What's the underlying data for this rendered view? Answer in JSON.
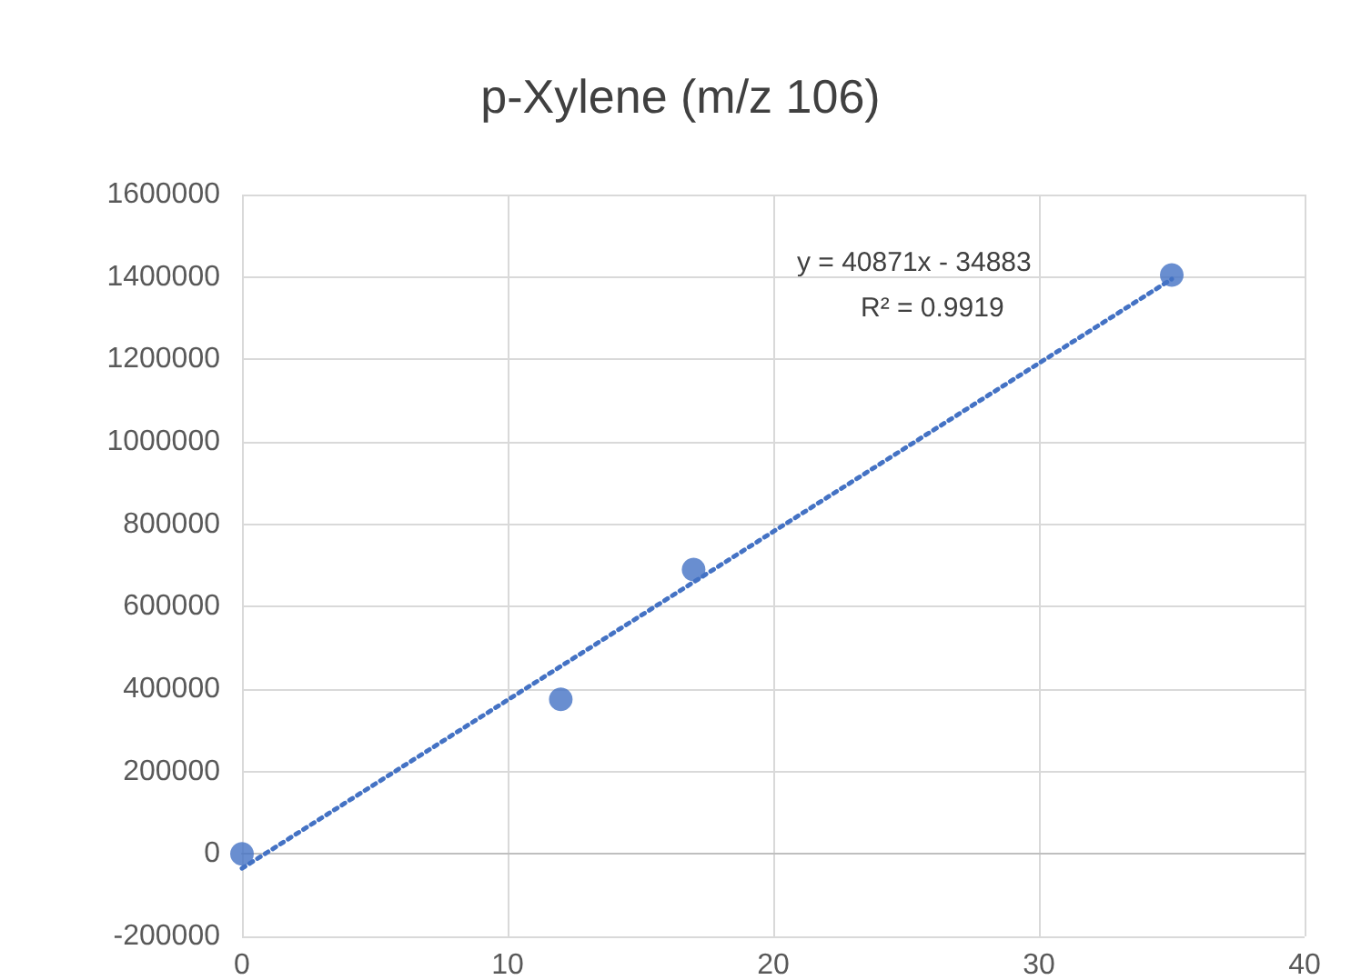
{
  "chart_data": {
    "type": "scatter",
    "title": "p-Xylene (m/z 106)",
    "xlim": [
      0,
      40
    ],
    "xticks": [
      0,
      10,
      20,
      30,
      40
    ],
    "ylim": [
      -200000,
      1600000
    ],
    "yticks": [
      -200000,
      0,
      200000,
      400000,
      600000,
      800000,
      1000000,
      1200000,
      1400000,
      1600000
    ],
    "grid": true,
    "marker": "circle",
    "series": [
      {
        "color": "#4472c4",
        "x": [
          0,
          12,
          17,
          35
        ],
        "values": [
          0,
          375000,
          690000,
          1405000
        ]
      },
      {
        "type": "line",
        "color": "#4472c4",
        "x": [
          0,
          35
        ],
        "values": [
          -35000,
          1395000
        ],
        "line_style": "dotted",
        "marker": "none"
      }
    ],
    "annotations": [
      "y = 40871x - 34883",
      "R² = 0.9919"
    ]
  }
}
